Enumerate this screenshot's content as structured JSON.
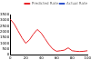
{
  "chart_data": {
    "type": "line",
    "x": [
      0,
      5,
      10,
      15,
      20,
      25,
      30,
      35,
      40,
      45,
      50,
      55,
      60,
      65,
      70,
      75,
      80,
      85,
      90,
      95,
      100
    ],
    "series": [
      {
        "name": "Predicted Rate",
        "color": "#e8262a",
        "values": [
          3100,
          2700,
          2100,
          1500,
          1000,
          1300,
          1800,
          2200,
          1900,
          1400,
          900,
          500,
          300,
          350,
          400,
          600,
          350,
          300,
          280,
          300,
          350
        ]
      },
      {
        "name": "Actual Rate",
        "color": "#3355cc",
        "values": [
          null,
          null,
          null,
          null,
          null,
          null,
          null,
          null,
          null,
          null,
          null,
          null,
          null,
          null,
          null,
          null,
          null,
          null,
          null,
          null,
          null
        ]
      }
    ],
    "xlim": [
      0,
      100
    ],
    "xticks": [
      0,
      20,
      40,
      60,
      80,
      100
    ],
    "ylim": [
      0,
      3500
    ],
    "yticks": [
      0,
      500,
      1000,
      1500,
      2000,
      2500,
      3000,
      3500
    ],
    "grid": false,
    "legend": "upper right"
  }
}
